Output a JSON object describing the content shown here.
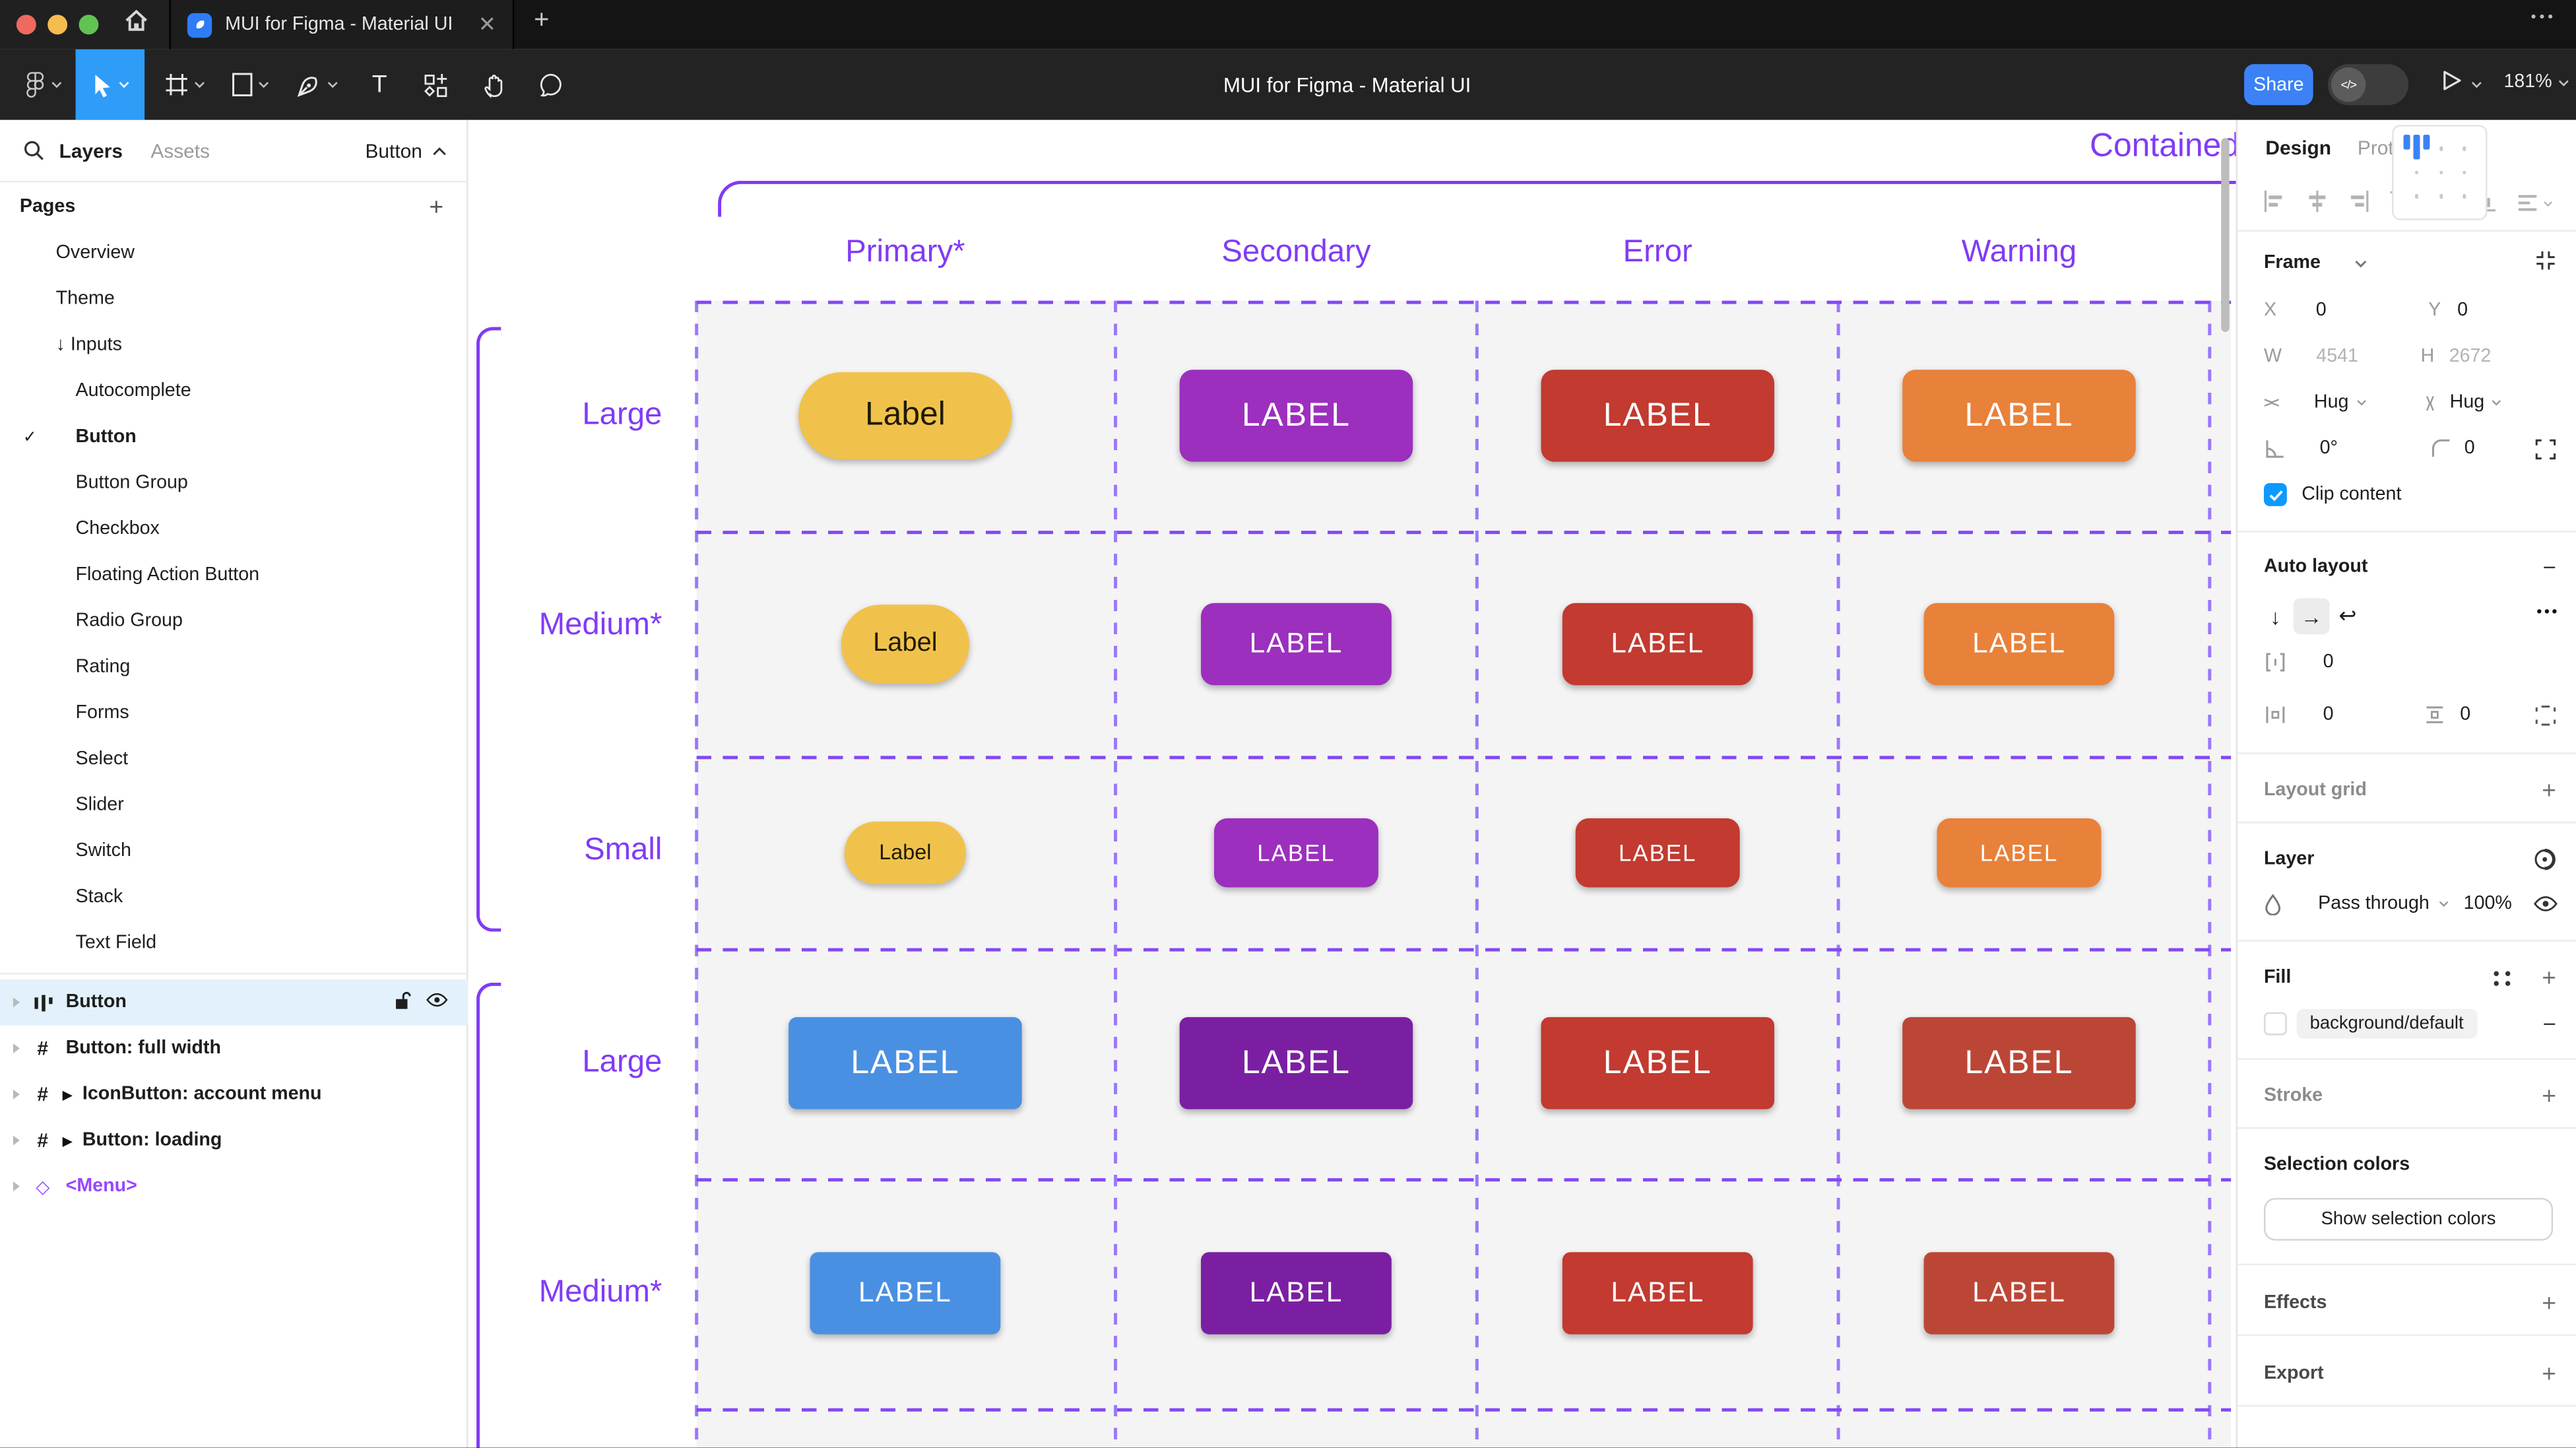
{
  "colors": {
    "accent_purple": "#813BF5",
    "dash_purple": "#9B79F7",
    "figma_blue": "#2F9CF8",
    "share_blue": "#3C82F6",
    "checkbox_blue": "#0D99FF",
    "selected_row_bg": "#E2F1FC",
    "grid_cell_bg": "#F4F4F5",
    "traffic_lights": [
      "#EE6A5F",
      "#F5BD4F",
      "#61C354"
    ]
  },
  "titlebar": {
    "tab_title": "MUI for Figma - Material UI",
    "close_label": "✕",
    "new_tab_label": "+",
    "more_label": "•••"
  },
  "toolbar": {
    "document_title": "MUI for Figma - Material UI",
    "share_label": "Share",
    "dev_toggle_label": "</>",
    "zoom_level": "181%"
  },
  "sidebar": {
    "search_icon": "search-icon",
    "tabs": {
      "layers": "Layers",
      "assets": "Assets"
    },
    "component_nav": "Button",
    "pages_header": "Pages",
    "add_page_label": "+",
    "pages": [
      {
        "label": "Overview",
        "indent": false,
        "checked": false,
        "active": false
      },
      {
        "label": "Theme",
        "indent": false,
        "checked": false,
        "active": false
      },
      {
        "label": "↓ Inputs",
        "indent": false,
        "checked": false,
        "active": false
      },
      {
        "label": "Autocomplete",
        "indent": true,
        "checked": false,
        "active": false
      },
      {
        "label": "Button",
        "indent": true,
        "checked": true,
        "active": true
      },
      {
        "label": "Button Group",
        "indent": true,
        "checked": false,
        "active": false
      },
      {
        "label": "Checkbox",
        "indent": true,
        "checked": false,
        "active": false
      },
      {
        "label": "Floating Action Button",
        "indent": true,
        "checked": false,
        "active": false
      },
      {
        "label": "Radio Group",
        "indent": true,
        "checked": false,
        "active": false
      },
      {
        "label": "Rating",
        "indent": true,
        "checked": false,
        "active": false
      },
      {
        "label": "Forms",
        "indent": true,
        "checked": false,
        "active": false
      },
      {
        "label": "Select",
        "indent": true,
        "checked": false,
        "active": false
      },
      {
        "label": "Slider",
        "indent": true,
        "checked": false,
        "active": false
      },
      {
        "label": "Switch",
        "indent": true,
        "checked": false,
        "active": false
      },
      {
        "label": "Stack",
        "indent": true,
        "checked": false,
        "active": false
      },
      {
        "label": "Text Field",
        "indent": true,
        "checked": false,
        "active": false
      }
    ],
    "layers": [
      {
        "name": "Button",
        "icon": "autolayout",
        "play": false,
        "selected": true,
        "purple": false
      },
      {
        "name": "Button: full width",
        "icon": "frame",
        "play": false,
        "selected": false,
        "purple": false
      },
      {
        "name": "IconButton: account menu",
        "icon": "frame",
        "play": true,
        "selected": false,
        "purple": false
      },
      {
        "name": "Button: loading",
        "icon": "frame",
        "play": true,
        "selected": false,
        "purple": false
      },
      {
        "name": "<Menu>",
        "icon": "instance",
        "play": false,
        "selected": false,
        "purple": true
      }
    ]
  },
  "canvas": {
    "section_label": "Contained",
    "columns": [
      "Primary*",
      "Secondary",
      "Error",
      "Warning"
    ],
    "rows": [
      {
        "label": "Large",
        "buttons": [
          {
            "text": "Label",
            "bg": "#F1C24B",
            "fg": "#201A06",
            "shape": "pill",
            "size": "lg"
          },
          {
            "text": "LABEL",
            "bg": "#9C2FBE",
            "fg": "#FFFFFF",
            "shape": "soft",
            "size": "lg"
          },
          {
            "text": "LABEL",
            "bg": "#C23A30",
            "fg": "#FFFFFF",
            "shape": "soft",
            "size": "lg"
          },
          {
            "text": "LABEL",
            "bg": "#E8813A",
            "fg": "#FFFFFF",
            "shape": "soft",
            "size": "lg"
          }
        ]
      },
      {
        "label": "Medium*",
        "buttons": [
          {
            "text": "Label",
            "bg": "#F1C24B",
            "fg": "#201A06",
            "shape": "pill",
            "size": "md"
          },
          {
            "text": "LABEL",
            "bg": "#9C2FBE",
            "fg": "#FFFFFF",
            "shape": "soft",
            "size": "md"
          },
          {
            "text": "LABEL",
            "bg": "#C23A30",
            "fg": "#FFFFFF",
            "shape": "soft",
            "size": "md"
          },
          {
            "text": "LABEL",
            "bg": "#E8813A",
            "fg": "#FFFFFF",
            "shape": "soft",
            "size": "md"
          }
        ]
      },
      {
        "label": "Small",
        "buttons": [
          {
            "text": "Label",
            "bg": "#F1C24B",
            "fg": "#201A06",
            "shape": "pill",
            "size": "sm"
          },
          {
            "text": "LABEL",
            "bg": "#9C2FBE",
            "fg": "#FFFFFF",
            "shape": "soft",
            "size": "sm"
          },
          {
            "text": "LABEL",
            "bg": "#C23A30",
            "fg": "#FFFFFF",
            "shape": "soft",
            "size": "sm"
          },
          {
            "text": "LABEL",
            "bg": "#E8813A",
            "fg": "#FFFFFF",
            "shape": "soft",
            "size": "sm"
          }
        ]
      },
      {
        "label": "Large",
        "buttons": [
          {
            "text": "LABEL",
            "bg": "#4A90E2",
            "fg": "#FFFFFF",
            "shape": "sharp",
            "size": "lg"
          },
          {
            "text": "LABEL",
            "bg": "#7B1FA2",
            "fg": "#FFFFFF",
            "shape": "sharp",
            "size": "lg"
          },
          {
            "text": "LABEL",
            "bg": "#C23A30",
            "fg": "#FFFFFF",
            "shape": "sharp",
            "size": "lg"
          },
          {
            "text": "LABEL",
            "bg": "#BC4636",
            "fg": "#FFFFFF",
            "shape": "sharp",
            "size": "lg"
          }
        ]
      },
      {
        "label": "Medium*",
        "buttons": [
          {
            "text": "LABEL",
            "bg": "#4A90E2",
            "fg": "#FFFFFF",
            "shape": "sharp",
            "size": "md"
          },
          {
            "text": "LABEL",
            "bg": "#7B1FA2",
            "fg": "#FFFFFF",
            "shape": "sharp",
            "size": "md"
          },
          {
            "text": "LABEL",
            "bg": "#C23A30",
            "fg": "#FFFFFF",
            "shape": "sharp",
            "size": "md"
          },
          {
            "text": "LABEL",
            "bg": "#BC4636",
            "fg": "#FFFFFF",
            "shape": "sharp",
            "size": "md"
          }
        ]
      }
    ]
  },
  "panel": {
    "tabs": {
      "design": "Design",
      "prototype": "Prototype"
    },
    "frame": {
      "title": "Frame",
      "x_label": "X",
      "x": "0",
      "y_label": "Y",
      "y": "0",
      "w_label": "W",
      "w": "4541",
      "h_label": "H",
      "h": "2672",
      "hug_h": "Hug",
      "hug_v": "Hug",
      "rotation": "0°",
      "corner_radius": "0",
      "clip_content_label": "Clip content"
    },
    "auto_layout": {
      "title": "Auto layout",
      "gap": "0",
      "padding_h": "0",
      "padding_v": "0",
      "more_label": "•••"
    },
    "layout_grid": {
      "title": "Layout grid"
    },
    "layer": {
      "title": "Layer",
      "blend_mode": "Pass through",
      "opacity": "100%"
    },
    "fill": {
      "title": "Fill",
      "token": "background/default"
    },
    "stroke": {
      "title": "Stroke"
    },
    "selection_colors": {
      "title": "Selection colors",
      "button_label": "Show selection colors"
    },
    "effects": {
      "title": "Effects"
    },
    "export": {
      "title": "Export"
    }
  }
}
